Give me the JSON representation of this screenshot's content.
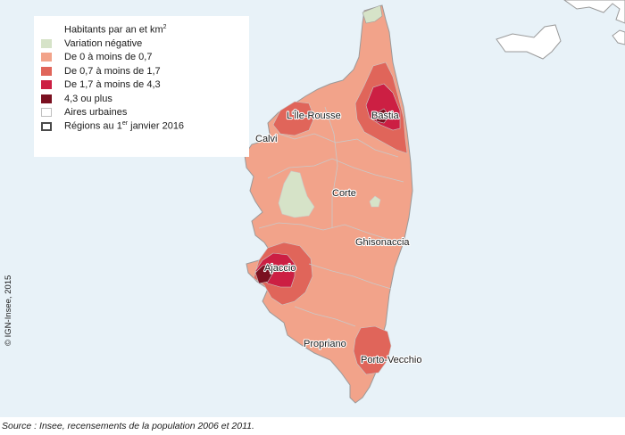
{
  "map": {
    "title": "",
    "legend": {
      "title": "Habitants par an et km",
      "title_superscript": "2",
      "items": [
        {
          "label": "Variation négative",
          "color": "#d6e3c8"
        },
        {
          "label": "De 0 à moins de 0,7",
          "color": "#f2a38a"
        },
        {
          "label": "De 0,7 à moins de 1,7",
          "color": "#e0655a"
        },
        {
          "label": "De 1,7 à moins de 4,3",
          "color": "#cc1f43"
        },
        {
          "label": "4,3 ou plus",
          "color": "#7a1020"
        }
      ],
      "outline_items": [
        {
          "label": "Aires urbaines",
          "color": "#bfbfbf"
        },
        {
          "label_before": "Régions au 1",
          "label_sup": "er",
          "label_after": " janvier 2016",
          "color": "#4a4a4a"
        }
      ]
    },
    "cities": [
      {
        "name": "L'Île-Rousse"
      },
      {
        "name": "Bastia"
      },
      {
        "name": "Calvi"
      },
      {
        "name": "Corte"
      },
      {
        "name": "Ghisonaccia"
      },
      {
        "name": "Ajaccio"
      },
      {
        "name": "Propriano"
      },
      {
        "name": "Porto-Vecchio"
      }
    ],
    "colors": {
      "sea": "#e8f2f8",
      "land_outside": "#ffffff",
      "border": "#9a9a9a",
      "urban_area_outline": "#c9c9c9"
    }
  },
  "copyright": "© IGN-Insee, 2015",
  "source": "Source : Insee, recensements de la population 2006 et 2011."
}
